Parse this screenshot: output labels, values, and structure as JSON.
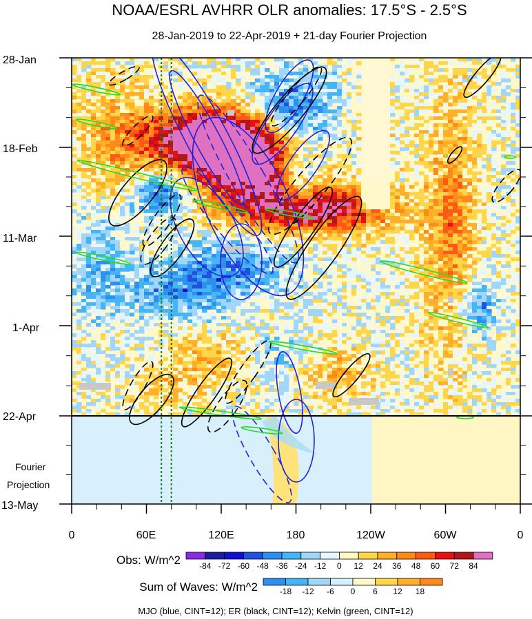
{
  "chart_data": {
    "type": "heatmap",
    "title": "NOAA/ESRL AVHRR OLR anomalies: 17.5°S - 2.5°S",
    "subtitle": "28-Jan-2019 to 22-Apr-2019 + 21-day Fourier Projection",
    "xlabel": "",
    "ylabel": "",
    "x_ticks": [
      "0",
      "60E",
      "120E",
      "180",
      "120W",
      "60W",
      "0"
    ],
    "y_ticks": [
      "28-Jan",
      "18-Feb",
      "11-Mar",
      "1-Apr",
      "22-Apr",
      "13-May"
    ],
    "projection_label_line1": "Fourier",
    "projection_label_line2": "Projection",
    "obs_colorbar": {
      "label": "Obs: W/m^2",
      "levels": [
        -84,
        -72,
        -60,
        -48,
        -36,
        -24,
        -12,
        0,
        12,
        24,
        36,
        48,
        60,
        72,
        84
      ],
      "colors": [
        "#8a2be2",
        "#1c1c9e",
        "#1010d0",
        "#2050e0",
        "#2f8fee",
        "#45b5f5",
        "#9fd6fa",
        "#e4f6ff",
        "#fff9c8",
        "#ffd54a",
        "#ffb028",
        "#ff8a1a",
        "#ff5a14",
        "#e81010",
        "#b01818",
        "#e070c0"
      ]
    },
    "waves_colorbar": {
      "label": "Sum of Waves: W/m^2",
      "levels": [
        -18,
        -12,
        -6,
        0,
        6,
        12,
        18
      ],
      "colors": [
        "#2f8fee",
        "#45b5f5",
        "#9fd6fa",
        "#d6f0ff",
        "#fff9c8",
        "#ffd54a",
        "#ffb028",
        "#ff8a1a"
      ]
    },
    "footer": "MJO (blue, CINT=12); ER (black, CINT=12); Kelvin (green, CINT=12)",
    "contour_colors": {
      "mjo": "#2222dd",
      "er": "#000000",
      "kelvin": "#22dd22"
    },
    "reference_longitudes": [
      72,
      80
    ],
    "end_observation": "22-Apr",
    "end_projection": "13-May"
  }
}
